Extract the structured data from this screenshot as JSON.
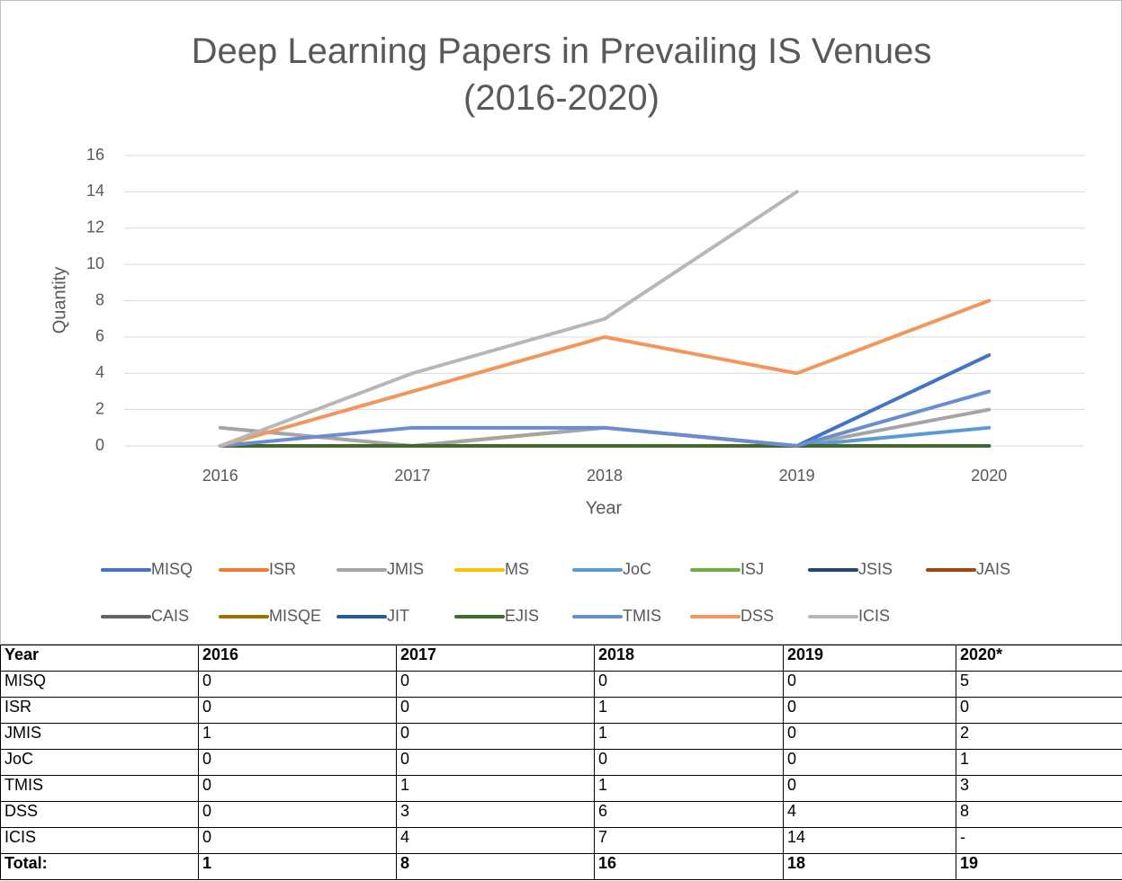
{
  "chart_data": {
    "type": "line",
    "title": "Deep Learning Papers in Prevailing IS Venues (2016-2020)",
    "x_label": "Year",
    "y_label": "Quantity",
    "categories": [
      "2016",
      "2017",
      "2018",
      "2019",
      "2020"
    ],
    "ylim": [
      0,
      16
    ],
    "yticks": [
      0,
      2,
      4,
      6,
      8,
      10,
      12,
      14,
      16
    ],
    "grid": true,
    "legend": "bottom",
    "series": [
      {
        "name": "MISQ",
        "color": "#4472c4",
        "values": [
          0,
          0,
          0,
          0,
          5
        ]
      },
      {
        "name": "ISR",
        "color": "#ed7d31",
        "values": [
          0,
          0,
          1,
          0,
          0
        ]
      },
      {
        "name": "JMIS",
        "color": "#a5a5a5",
        "values": [
          1,
          0,
          1,
          0,
          2
        ]
      },
      {
        "name": "MS",
        "color": "#ffc000",
        "values": [
          0,
          0,
          0,
          0,
          0
        ]
      },
      {
        "name": "JoC",
        "color": "#5b9bd5",
        "values": [
          0,
          0,
          0,
          0,
          1
        ]
      },
      {
        "name": "ISJ",
        "color": "#70ad47",
        "values": [
          0,
          0,
          0,
          0,
          0
        ]
      },
      {
        "name": "JSIS",
        "color": "#264478",
        "values": [
          0,
          0,
          0,
          0,
          0
        ]
      },
      {
        "name": "JAIS",
        "color": "#9e480e",
        "values": [
          0,
          0,
          0,
          0,
          0
        ]
      },
      {
        "name": "CAIS",
        "color": "#636363",
        "values": [
          0,
          0,
          0,
          0,
          0
        ]
      },
      {
        "name": "MISQE",
        "color": "#997300",
        "values": [
          0,
          0,
          0,
          0,
          0
        ]
      },
      {
        "name": "JIT",
        "color": "#255e91",
        "values": [
          0,
          0,
          0,
          0,
          0
        ]
      },
      {
        "name": "EJIS",
        "color": "#43682b",
        "values": [
          0,
          0,
          0,
          0,
          0
        ]
      },
      {
        "name": "TMIS",
        "color": "#698ed0",
        "values": [
          0,
          1,
          1,
          0,
          3
        ]
      },
      {
        "name": "DSS",
        "color": "#f1975a",
        "values": [
          0,
          3,
          6,
          4,
          8
        ]
      },
      {
        "name": "ICIS",
        "color": "#b7b7b7",
        "values": [
          0,
          4,
          7,
          14,
          null
        ]
      }
    ]
  },
  "table": {
    "header": [
      "Year",
      "2016",
      "2017",
      "2018",
      "2019",
      "2020*"
    ],
    "rows": [
      [
        "MISQ",
        "0",
        "0",
        "0",
        "0",
        "5"
      ],
      [
        "ISR",
        "0",
        "0",
        "1",
        "0",
        "0"
      ],
      [
        "JMIS",
        "1",
        "0",
        "1",
        "0",
        "2"
      ],
      [
        "JoC",
        "0",
        "0",
        "0",
        "0",
        "1"
      ],
      [
        "TMIS",
        "0",
        "1",
        "1",
        "0",
        "3"
      ],
      [
        "DSS",
        "0",
        "3",
        "6",
        "4",
        "8"
      ],
      [
        "ICIS",
        "0",
        "4",
        "7",
        "14",
        "-"
      ]
    ],
    "total": [
      "Total:",
      "1",
      "8",
      "16",
      "18",
      "19"
    ]
  }
}
